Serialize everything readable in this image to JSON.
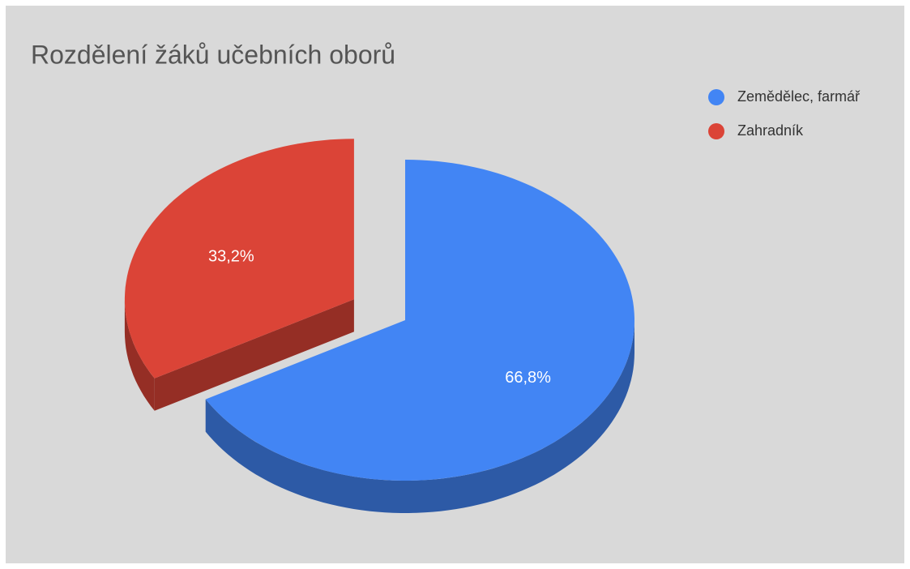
{
  "chart_data": {
    "type": "pie",
    "title": "Rozdělení žáků učebních oborů",
    "categories": [
      "Zemědělec, farmář",
      "Zahradník"
    ],
    "values": [
      66.8,
      33.2
    ],
    "value_labels": [
      "66,8%",
      "33,2%"
    ],
    "colors": [
      "#4285f4",
      "#db4437"
    ],
    "legend": "right",
    "three_d": true,
    "exploded": [
      false,
      true
    ]
  }
}
